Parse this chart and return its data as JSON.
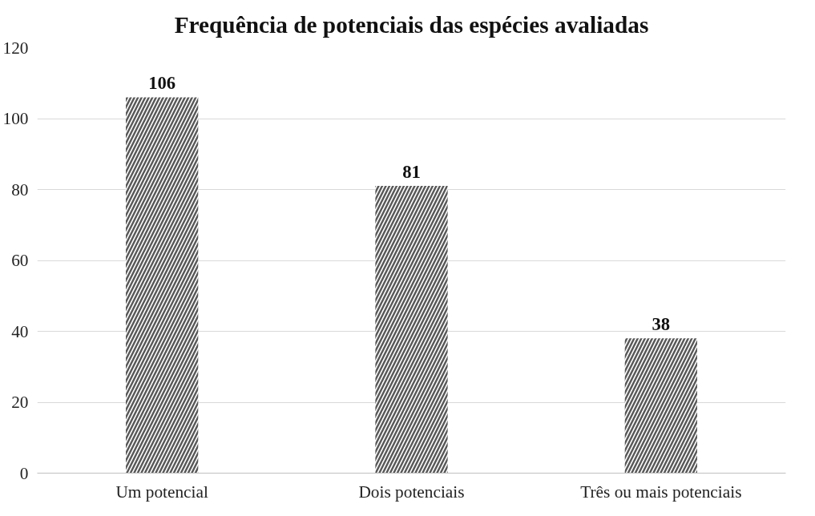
{
  "chart_data": {
    "type": "bar",
    "title": "Frequência de potenciais das espécies avaliadas",
    "categories": [
      "Um potencial",
      "Dois potenciais",
      "Três ou mais potenciais"
    ],
    "values": [
      106,
      81,
      38
    ],
    "color": "#595959",
    "ylim": [
      0,
      120
    ],
    "yticks": [
      0,
      20,
      40,
      60,
      80,
      100,
      120
    ],
    "grid": "y",
    "data_labels": true
  }
}
